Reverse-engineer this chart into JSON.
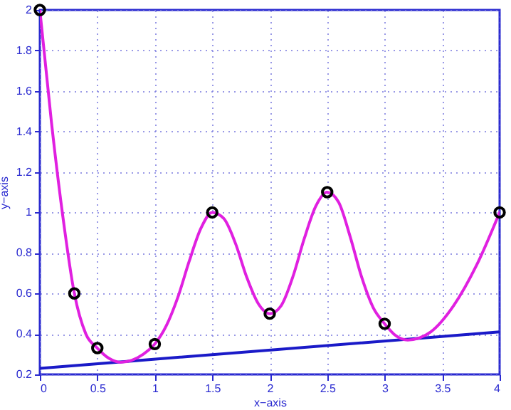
{
  "chart_data": {
    "type": "scatter",
    "xlabel": "x−axis",
    "ylabel": "y−axis",
    "xlim": [
      0,
      4
    ],
    "xticks": [
      0,
      0.5,
      1,
      1.5,
      2,
      2.5,
      3,
      3.5,
      4
    ],
    "ylim": [
      0.2,
      2
    ],
    "yticks": [
      0.2,
      0.4,
      0.6,
      0.8,
      1,
      1.2,
      1.4,
      1.6,
      1.8,
      2
    ],
    "grid": true,
    "marker": "circle",
    "series": [
      {
        "type": "line",
        "marker": "none",
        "color": "#1a1ac8",
        "x": [
          0,
          4
        ],
        "values": [
          0.23,
          0.41
        ]
      },
      {
        "type": "line",
        "marker": "none",
        "color": "#e020e0",
        "x": [
          0,
          0.1,
          0.2,
          0.3,
          0.4,
          0.5,
          0.6,
          0.7,
          0.8,
          0.9,
          1.0,
          1.1,
          1.2,
          1.3,
          1.4,
          1.5,
          1.6,
          1.7,
          1.8,
          1.9,
          2.0,
          2.1,
          2.2,
          2.3,
          2.4,
          2.5,
          2.6,
          2.7,
          2.8,
          2.9,
          3.0,
          3.1,
          3.2,
          3.3,
          3.4,
          3.6,
          3.8,
          4.0
        ],
        "values": [
          2.0,
          1.45,
          0.98,
          0.6,
          0.4,
          0.33,
          0.28,
          0.26,
          0.27,
          0.3,
          0.35,
          0.44,
          0.58,
          0.76,
          0.92,
          1.0,
          0.97,
          0.85,
          0.68,
          0.55,
          0.5,
          0.54,
          0.68,
          0.87,
          1.03,
          1.1,
          1.05,
          0.88,
          0.68,
          0.53,
          0.45,
          0.39,
          0.37,
          0.38,
          0.41,
          0.54,
          0.74,
          1.0
        ]
      },
      {
        "type": "scatter",
        "color": "#000000",
        "x": [
          0,
          0.3,
          0.5,
          1,
          1.5,
          2,
          2.5,
          3,
          4
        ],
        "values": [
          2.0,
          0.6,
          0.33,
          0.35,
          1.0,
          0.5,
          1.1,
          0.45,
          1.0
        ]
      }
    ]
  }
}
